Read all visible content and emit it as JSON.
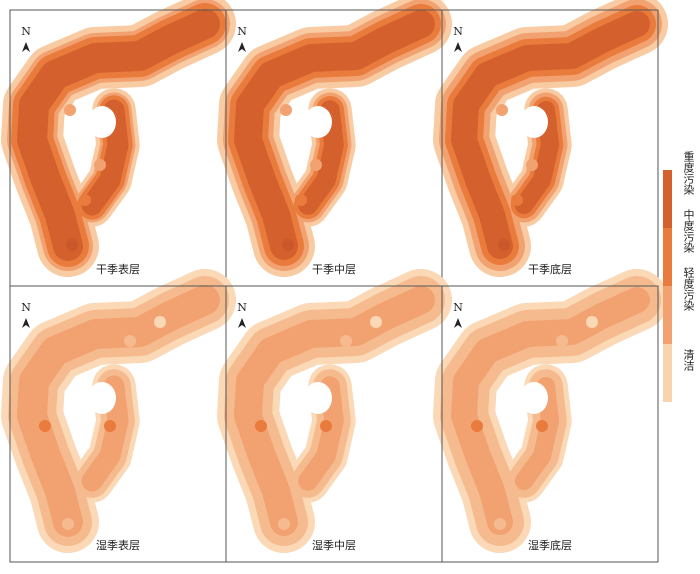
{
  "north": "N",
  "panels": [
    {
      "label": "干季表层"
    },
    {
      "label": "干季中层"
    },
    {
      "label": "干季底层"
    },
    {
      "label": "湿季表层"
    },
    {
      "label": "湿季中层"
    },
    {
      "label": "湿季底层"
    }
  ],
  "legend": [
    {
      "label": "重度污染",
      "color": "#d4612d"
    },
    {
      "label": "中度污染",
      "color": "#e97b3c"
    },
    {
      "label": "轻度污染",
      "color": "#f2a271"
    },
    {
      "label": "清洁",
      "color": "#f9d3ae"
    }
  ]
}
